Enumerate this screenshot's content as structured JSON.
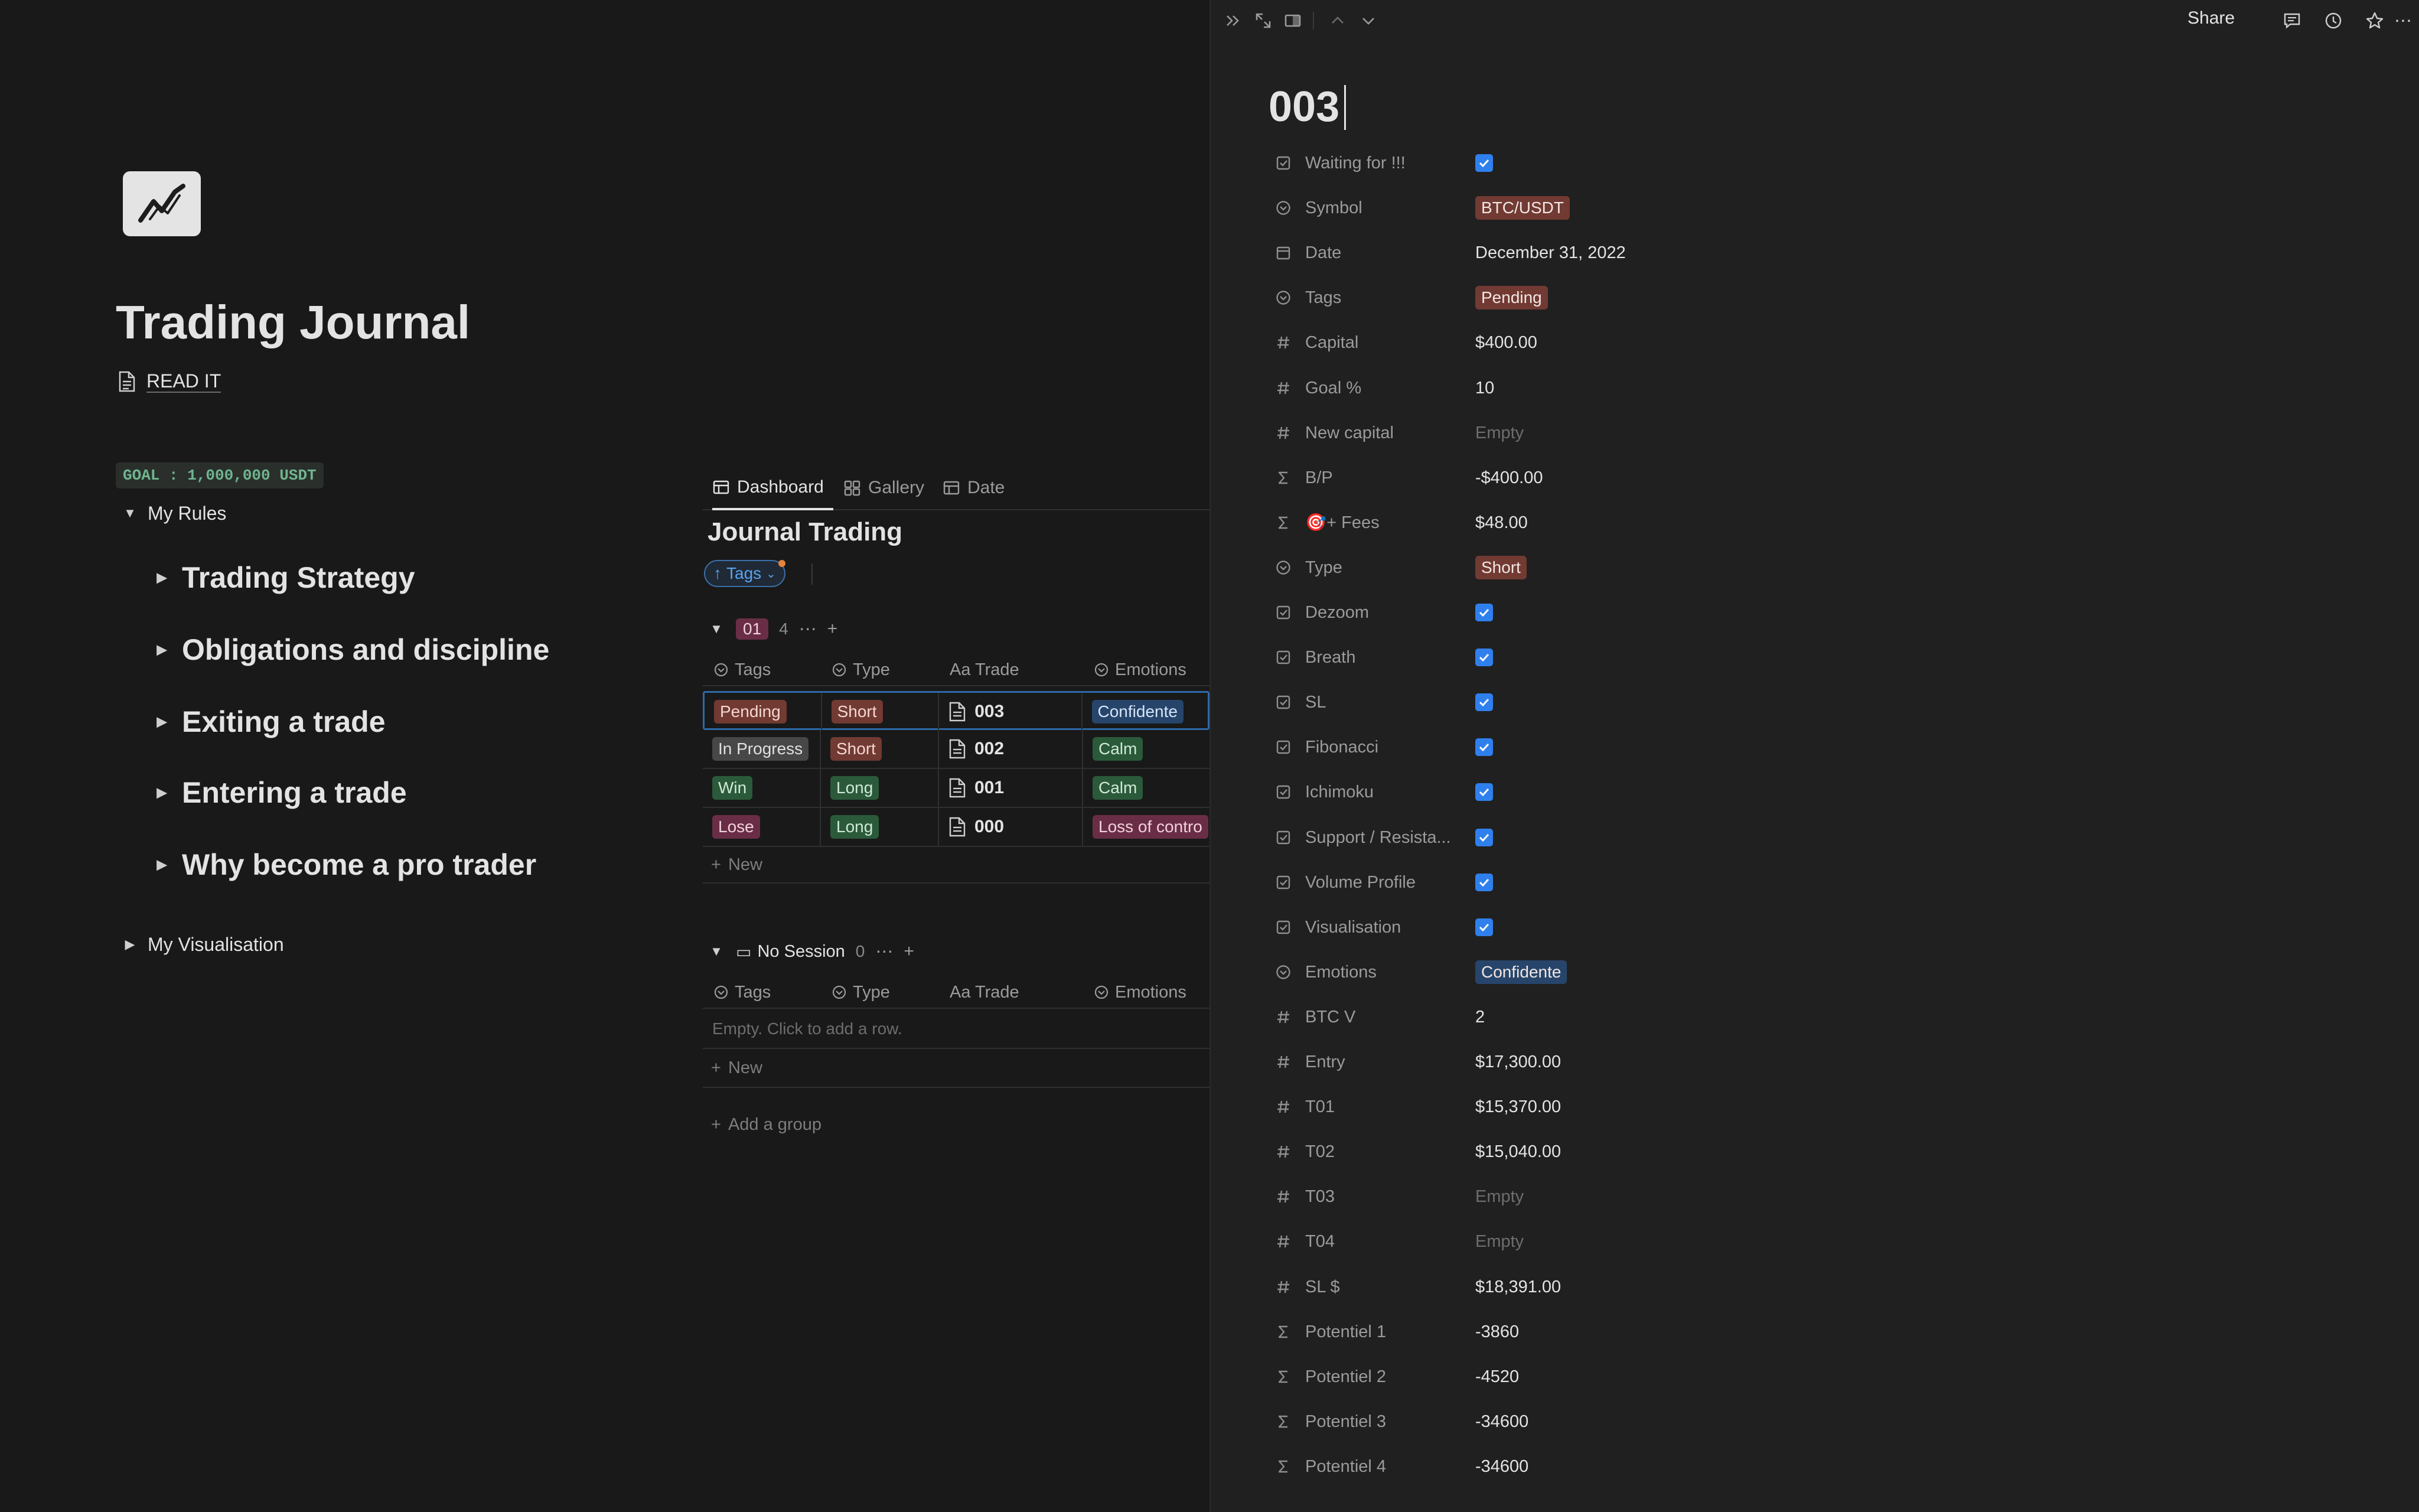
{
  "page": {
    "title": "Trading Journal",
    "read_it": "READ IT",
    "goal": "GOAL : 1,000,000 USDT",
    "my_rules": "My Rules",
    "rules": [
      "Trading Strategy",
      "Obligations and discipline",
      "Exiting a trade",
      "Entering a trade",
      "Why become a pro trader"
    ],
    "my_visualisation": "My Visualisation"
  },
  "database": {
    "tabs": [
      "Dashboard",
      "Gallery",
      "Date"
    ],
    "title": "Journal Trading",
    "filter_label": "Tags",
    "columns": [
      "Tags",
      "Type",
      "Aa Trade",
      "Emotions"
    ],
    "group1": {
      "label": "01",
      "count": "4",
      "rows": [
        {
          "tag": "Pending",
          "type": "Short",
          "trade": "003",
          "emotion": "Confidente"
        },
        {
          "tag": "In Progress",
          "type": "Short",
          "trade": "002",
          "emotion": "Calm"
        },
        {
          "tag": "Win",
          "type": "Long",
          "trade": "001",
          "emotion": "Calm"
        },
        {
          "tag": "Lose",
          "type": "Long",
          "trade": "000",
          "emotion": "Loss of contro"
        }
      ],
      "new_label": "New"
    },
    "group2": {
      "label": "No Session",
      "count": "0",
      "empty_text": "Empty. Click to add a row.",
      "new_label": "New"
    },
    "add_group": "Add a group"
  },
  "panel": {
    "share": "Share",
    "title": "003",
    "properties": [
      {
        "icon": "checkbox",
        "name": "Waiting for !!!",
        "kind": "check"
      },
      {
        "icon": "select",
        "name": "Symbol",
        "kind": "pill",
        "value": "BTC/USDT",
        "color": "#713a33"
      },
      {
        "icon": "calendar",
        "name": "Date",
        "kind": "text",
        "value": "December 31, 2022"
      },
      {
        "icon": "select",
        "name": "Tags",
        "kind": "pill",
        "value": "Pending",
        "color": "#713a33"
      },
      {
        "icon": "number",
        "name": "Capital",
        "kind": "text",
        "value": "$400.00"
      },
      {
        "icon": "number",
        "name": "Goal %",
        "kind": "text",
        "value": "10"
      },
      {
        "icon": "number",
        "name": "New capital",
        "kind": "empty",
        "value": "Empty"
      },
      {
        "icon": "formula",
        "name": "B/P",
        "kind": "text",
        "value": "-$400.00"
      },
      {
        "icon": "formula",
        "name": "🎯+ Fees",
        "kind": "text",
        "value": "$48.00"
      },
      {
        "icon": "select",
        "name": "Type",
        "kind": "pill",
        "value": "Short",
        "color": "#713a33"
      },
      {
        "icon": "checkbox",
        "name": "Dezoom",
        "kind": "check"
      },
      {
        "icon": "checkbox",
        "name": "Breath",
        "kind": "check"
      },
      {
        "icon": "checkbox",
        "name": "SL",
        "kind": "check"
      },
      {
        "icon": "checkbox",
        "name": "Fibonacci",
        "kind": "check"
      },
      {
        "icon": "checkbox",
        "name": "Ichimoku",
        "kind": "check"
      },
      {
        "icon": "checkbox",
        "name": "Support / Resista...",
        "kind": "check"
      },
      {
        "icon": "checkbox",
        "name": "Volume Profile",
        "kind": "check"
      },
      {
        "icon": "checkbox",
        "name": "Visualisation",
        "kind": "check"
      },
      {
        "icon": "select",
        "name": "Emotions",
        "kind": "pill",
        "value": "Confidente",
        "color": "#27456b"
      },
      {
        "icon": "number",
        "name": "BTC V",
        "kind": "text",
        "value": "2"
      },
      {
        "icon": "number",
        "name": "Entry",
        "kind": "text",
        "value": "$17,300.00"
      },
      {
        "icon": "number",
        "name": "T01",
        "kind": "text",
        "value": "$15,370.00"
      },
      {
        "icon": "number",
        "name": "T02",
        "kind": "text",
        "value": "$15,040.00"
      },
      {
        "icon": "number",
        "name": "T03",
        "kind": "empty",
        "value": "Empty"
      },
      {
        "icon": "number",
        "name": "T04",
        "kind": "empty",
        "value": "Empty"
      },
      {
        "icon": "number",
        "name": "SL $",
        "kind": "text",
        "value": "$18,391.00"
      },
      {
        "icon": "formula",
        "name": "Potentiel 1",
        "kind": "text",
        "value": "-3860"
      },
      {
        "icon": "formula",
        "name": "Potentiel 2",
        "kind": "text",
        "value": "-4520"
      },
      {
        "icon": "formula",
        "name": "Potentiel 3",
        "kind": "text",
        "value": "-34600"
      },
      {
        "icon": "formula",
        "name": "Potentiel 4",
        "kind": "text",
        "value": "-34600"
      }
    ]
  }
}
